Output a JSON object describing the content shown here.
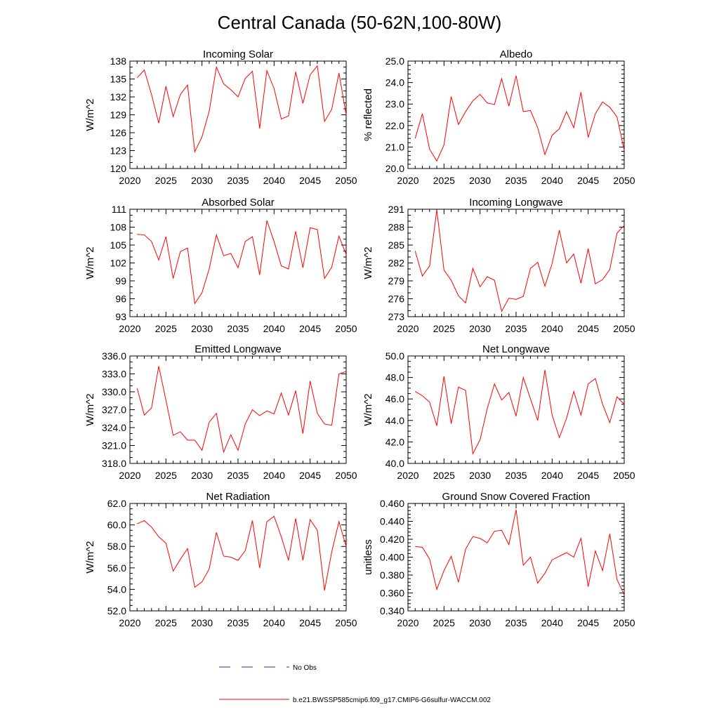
{
  "page_title": "Central Canada (50-62N,100-80W)",
  "colors": {
    "model": "#ff0000",
    "obs": "#2b2bd0",
    "axis": "#000000"
  },
  "legend": {
    "obs_label": "No Obs",
    "model_label": "b.e21.BWSSP585cmip6.f09_g17.CMIP6-G6sulfur-WACCM.002"
  },
  "chart_data": [
    {
      "type": "line",
      "title": "Incoming Solar",
      "xlabel": "",
      "ylabel": "W/m^2",
      "xlim": [
        2020,
        2050
      ],
      "ylim": [
        120,
        138
      ],
      "xticks": [
        2020,
        2025,
        2030,
        2035,
        2040,
        2045,
        2050
      ],
      "yticks": [
        "120",
        "123",
        "126",
        "129",
        "132",
        "135",
        "138"
      ],
      "grid": false,
      "x": [
        2021,
        2022,
        2023,
        2024,
        2025,
        2026,
        2027,
        2028,
        2029,
        2030,
        2031,
        2032,
        2033,
        2034,
        2035,
        2036,
        2037,
        2038,
        2039,
        2040,
        2041,
        2042,
        2043,
        2044,
        2045,
        2046,
        2047,
        2048,
        2049,
        2050
      ],
      "series": [
        {
          "name": "b.e21.BWSSP585cmip6.f09_g17.CMIP6-G6sulfur-WACCM.002",
          "values": [
            135.2,
            136.5,
            132.4,
            127.6,
            133.8,
            128.7,
            132.4,
            134.0,
            122.8,
            125.3,
            129.6,
            137.0,
            134.2,
            133.2,
            132.0,
            135.1,
            136.3,
            126.7,
            136.4,
            133.4,
            128.3,
            128.8,
            136.2,
            130.9,
            135.7,
            137.2,
            127.9,
            129.9,
            136.0,
            129.0
          ]
        }
      ]
    },
    {
      "type": "line",
      "title": "Albedo",
      "xlabel": "",
      "ylabel": "% reflected",
      "xlim": [
        2020,
        2050
      ],
      "ylim": [
        20.0,
        25.0
      ],
      "xticks": [
        2020,
        2025,
        2030,
        2035,
        2040,
        2045,
        2050
      ],
      "yticks": [
        "20.0",
        "21.0",
        "22.0",
        "23.0",
        "24.0",
        "25.0"
      ],
      "grid": false,
      "x": [
        2021,
        2022,
        2023,
        2024,
        2025,
        2026,
        2027,
        2028,
        2029,
        2030,
        2031,
        2032,
        2033,
        2034,
        2035,
        2036,
        2037,
        2038,
        2039,
        2040,
        2041,
        2042,
        2043,
        2044,
        2045,
        2046,
        2047,
        2048,
        2049,
        2050
      ],
      "series": [
        {
          "name": "b.e21.BWSSP585cmip6.f09_g17.CMIP6-G6sulfur-WACCM.002",
          "values": [
            21.4,
            22.55,
            20.9,
            20.35,
            21.1,
            23.35,
            22.05,
            22.65,
            23.15,
            23.45,
            23.05,
            22.98,
            24.18,
            22.9,
            24.32,
            22.65,
            22.7,
            21.9,
            20.65,
            21.55,
            21.85,
            22.65,
            21.9,
            23.55,
            21.45,
            22.55,
            23.1,
            22.85,
            22.4,
            20.85
          ]
        }
      ]
    },
    {
      "type": "line",
      "title": "Absorbed Solar",
      "xlabel": "",
      "ylabel": "W/m^2",
      "xlim": [
        2020,
        2050
      ],
      "ylim": [
        93,
        111
      ],
      "xticks": [
        2020,
        2025,
        2030,
        2035,
        2040,
        2045,
        2050
      ],
      "yticks": [
        "93",
        "96",
        "99",
        "102",
        "105",
        "108",
        "111"
      ],
      "grid": false,
      "x": [
        2021,
        2022,
        2023,
        2024,
        2025,
        2026,
        2027,
        2028,
        2029,
        2030,
        2031,
        2032,
        2033,
        2034,
        2035,
        2036,
        2037,
        2038,
        2039,
        2040,
        2041,
        2042,
        2043,
        2044,
        2045,
        2046,
        2047,
        2048,
        2049,
        2050
      ],
      "series": [
        {
          "name": "b.e21.BWSSP585cmip6.f09_g17.CMIP6-G6sulfur-WACCM.002",
          "values": [
            106.8,
            106.7,
            105.6,
            102.5,
            106.4,
            99.4,
            103.9,
            104.5,
            95.2,
            97.0,
            101.0,
            106.7,
            103.2,
            103.6,
            101.2,
            105.6,
            106.4,
            100.0,
            109.1,
            105.6,
            101.5,
            101.0,
            107.3,
            101.2,
            107.9,
            107.6,
            99.4,
            101.3,
            106.5,
            103.4
          ]
        }
      ]
    },
    {
      "type": "line",
      "title": "Incoming Longwave",
      "xlabel": "",
      "ylabel": "W/m^2",
      "xlim": [
        2020,
        2050
      ],
      "ylim": [
        273,
        291
      ],
      "xticks": [
        2020,
        2025,
        2030,
        2035,
        2040,
        2045,
        2050
      ],
      "yticks": [
        "273",
        "276",
        "279",
        "282",
        "285",
        "288",
        "291"
      ],
      "grid": false,
      "x": [
        2021,
        2022,
        2023,
        2024,
        2025,
        2026,
        2027,
        2028,
        2029,
        2030,
        2031,
        2032,
        2033,
        2034,
        2035,
        2036,
        2037,
        2038,
        2039,
        2040,
        2041,
        2042,
        2043,
        2044,
        2045,
        2046,
        2047,
        2048,
        2049,
        2050
      ],
      "series": [
        {
          "name": "b.e21.BWSSP585cmip6.f09_g17.CMIP6-G6sulfur-WACCM.002",
          "values": [
            284.0,
            279.8,
            281.5,
            290.9,
            280.8,
            279.1,
            276.5,
            275.3,
            281.1,
            278.0,
            279.7,
            279.1,
            273.9,
            276.1,
            275.9,
            276.4,
            281.1,
            282.1,
            278.1,
            281.9,
            287.5,
            282.0,
            283.5,
            278.6,
            284.4,
            278.5,
            279.2,
            280.9,
            287.0,
            288.3
          ]
        }
      ]
    },
    {
      "type": "line",
      "title": "Emitted Longwave",
      "xlabel": "",
      "ylabel": "W/m^2",
      "xlim": [
        2020,
        2050
      ],
      "ylim": [
        318.0,
        336.0
      ],
      "xticks": [
        2020,
        2025,
        2030,
        2035,
        2040,
        2045,
        2050
      ],
      "yticks": [
        "318.0",
        "321.0",
        "324.0",
        "327.0",
        "330.0",
        "333.0",
        "336.0"
      ],
      "grid": false,
      "x": [
        2021,
        2022,
        2023,
        2024,
        2025,
        2026,
        2027,
        2028,
        2029,
        2030,
        2031,
        2032,
        2033,
        2034,
        2035,
        2036,
        2037,
        2038,
        2039,
        2040,
        2041,
        2042,
        2043,
        2044,
        2045,
        2046,
        2047,
        2048,
        2049,
        2050
      ],
      "series": [
        {
          "name": "b.e21.BWSSP585cmip6.f09_g17.CMIP6-G6sulfur-WACCM.002",
          "values": [
            330.6,
            326.1,
            327.3,
            334.3,
            328.6,
            322.7,
            323.3,
            321.9,
            321.9,
            320.2,
            324.9,
            326.4,
            319.9,
            322.8,
            320.2,
            324.6,
            327.0,
            326.0,
            326.8,
            326.3,
            329.8,
            326.1,
            330.2,
            323.0,
            331.8,
            326.4,
            324.6,
            324.4,
            333.0,
            333.4
          ]
        }
      ]
    },
    {
      "type": "line",
      "title": "Net Longwave",
      "xlabel": "",
      "ylabel": "W/m^2",
      "xlim": [
        2020,
        2050
      ],
      "ylim": [
        40.0,
        50.0
      ],
      "xticks": [
        2020,
        2025,
        2030,
        2035,
        2040,
        2045,
        2050
      ],
      "yticks": [
        "40.0",
        "42.0",
        "44.0",
        "46.0",
        "48.0",
        "50.0"
      ],
      "grid": false,
      "x": [
        2021,
        2022,
        2023,
        2024,
        2025,
        2026,
        2027,
        2028,
        2029,
        2030,
        2031,
        2032,
        2033,
        2034,
        2035,
        2036,
        2037,
        2038,
        2039,
        2040,
        2041,
        2042,
        2043,
        2044,
        2045,
        2046,
        2047,
        2048,
        2049,
        2050
      ],
      "series": [
        {
          "name": "b.e21.BWSSP585cmip6.f09_g17.CMIP6-G6sulfur-WACCM.002",
          "values": [
            46.7,
            46.3,
            45.7,
            43.5,
            48.1,
            43.7,
            47.1,
            46.8,
            40.9,
            42.2,
            45.1,
            47.4,
            45.9,
            46.6,
            44.4,
            48.0,
            46.0,
            44.0,
            48.7,
            44.5,
            42.4,
            44.2,
            46.7,
            44.5,
            47.4,
            47.9,
            45.5,
            43.8,
            46.2,
            45.5
          ]
        }
      ]
    },
    {
      "type": "line",
      "title": "Net Radiation",
      "xlabel": "",
      "ylabel": "W/m^2",
      "xlim": [
        2020,
        2050
      ],
      "ylim": [
        52.0,
        62.0
      ],
      "xticks": [
        2020,
        2025,
        2030,
        2035,
        2040,
        2045,
        2050
      ],
      "yticks": [
        "52.0",
        "54.0",
        "56.0",
        "58.0",
        "60.0",
        "62.0"
      ],
      "grid": false,
      "x": [
        2021,
        2022,
        2023,
        2024,
        2025,
        2026,
        2027,
        2028,
        2029,
        2030,
        2031,
        2032,
        2033,
        2034,
        2035,
        2036,
        2037,
        2038,
        2039,
        2040,
        2041,
        2042,
        2043,
        2044,
        2045,
        2046,
        2047,
        2048,
        2049,
        2050
      ],
      "series": [
        {
          "name": "b.e21.BWSSP585cmip6.f09_g17.CMIP6-G6sulfur-WACCM.002",
          "values": [
            60.1,
            60.4,
            59.8,
            58.9,
            58.3,
            55.7,
            56.8,
            57.8,
            54.2,
            54.7,
            55.9,
            59.3,
            57.1,
            57.0,
            56.7,
            57.6,
            60.4,
            56.0,
            60.3,
            60.8,
            58.9,
            56.7,
            60.6,
            56.7,
            60.5,
            59.5,
            53.9,
            57.5,
            60.3,
            58.0
          ]
        }
      ]
    },
    {
      "type": "line",
      "title": "Ground Snow Covered Fraction",
      "xlabel": "",
      "ylabel": "unitless",
      "xlim": [
        2020,
        2050
      ],
      "ylim": [
        0.34,
        0.46
      ],
      "xticks": [
        2020,
        2025,
        2030,
        2035,
        2040,
        2045,
        2050
      ],
      "yticks": [
        "0.340",
        "0.360",
        "0.380",
        "0.400",
        "0.420",
        "0.440",
        "0.460"
      ],
      "grid": false,
      "x": [
        2021,
        2022,
        2023,
        2024,
        2025,
        2026,
        2027,
        2028,
        2029,
        2030,
        2031,
        2032,
        2033,
        2034,
        2035,
        2036,
        2037,
        2038,
        2039,
        2040,
        2041,
        2042,
        2043,
        2044,
        2045,
        2046,
        2047,
        2048,
        2049,
        2050
      ],
      "series": [
        {
          "name": "b.e21.BWSSP585cmip6.f09_g17.CMIP6-G6sulfur-WACCM.002",
          "values": [
            0.412,
            0.411,
            0.398,
            0.364,
            0.385,
            0.401,
            0.372,
            0.409,
            0.423,
            0.421,
            0.416,
            0.429,
            0.43,
            0.414,
            0.453,
            0.391,
            0.4,
            0.371,
            0.382,
            0.397,
            0.401,
            0.405,
            0.4,
            0.421,
            0.367,
            0.407,
            0.385,
            0.426,
            0.375,
            0.358
          ]
        }
      ]
    }
  ]
}
